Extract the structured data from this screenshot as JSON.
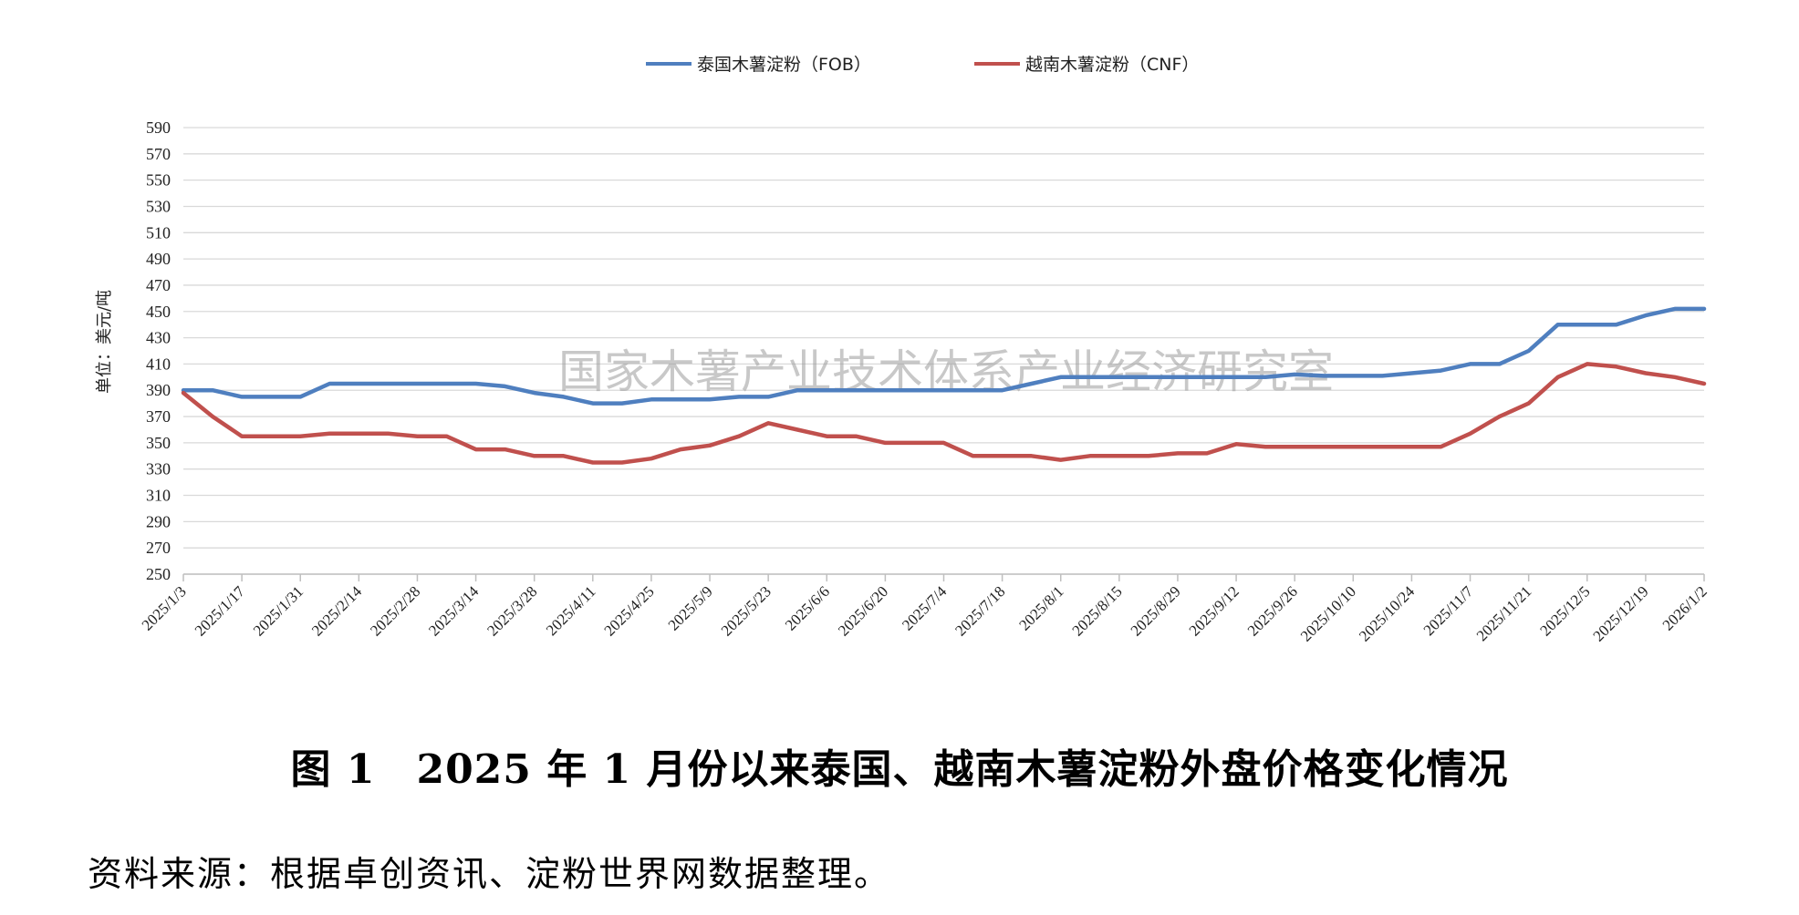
{
  "chart_data": {
    "type": "line",
    "title": "",
    "xlabel": "",
    "ylabel": "单位：美元/吨",
    "ylim": [
      250,
      590
    ],
    "yticks": [
      250,
      270,
      290,
      310,
      330,
      350,
      370,
      390,
      410,
      430,
      450,
      470,
      490,
      510,
      530,
      550,
      570,
      590
    ],
    "grid": true,
    "legend_position": "top-center",
    "x_tick_labels": [
      "2025/1/3",
      "2025/1/17",
      "2025/1/31",
      "2025/2/14",
      "2025/2/28",
      "2025/3/14",
      "2025/3/28",
      "2025/4/11",
      "2025/4/25",
      "2025/5/9",
      "2025/5/23",
      "2025/6/6",
      "2025/6/20",
      "2025/7/4",
      "2025/7/18",
      "2025/8/1",
      "2025/8/15",
      "2025/8/29",
      "2025/9/12",
      "2025/9/26",
      "2025/10/10",
      "2025/10/24",
      "2025/11/7",
      "2025/11/21",
      "2025/12/5",
      "2025/12/19",
      "2026/1/2"
    ],
    "x": [
      "2025/1/3",
      "2025/1/10",
      "2025/1/17",
      "2025/1/24",
      "2025/1/31",
      "2025/2/7",
      "2025/2/14",
      "2025/2/21",
      "2025/2/28",
      "2025/3/7",
      "2025/3/14",
      "2025/3/21",
      "2025/3/28",
      "2025/4/4",
      "2025/4/11",
      "2025/4/18",
      "2025/4/25",
      "2025/5/2",
      "2025/5/9",
      "2025/5/16",
      "2025/5/23",
      "2025/5/30",
      "2025/6/6",
      "2025/6/13",
      "2025/6/20",
      "2025/6/27",
      "2025/7/4",
      "2025/7/11",
      "2025/7/18",
      "2025/7/25",
      "2025/8/1",
      "2025/8/8",
      "2025/8/15",
      "2025/8/22",
      "2025/8/29",
      "2025/9/5",
      "2025/9/12",
      "2025/9/19",
      "2025/9/26",
      "2025/10/3",
      "2025/10/10",
      "2025/10/17",
      "2025/10/24",
      "2025/10/31",
      "2025/11/7",
      "2025/11/14",
      "2025/11/21",
      "2025/11/28",
      "2025/12/5",
      "2025/12/12",
      "2025/12/19",
      "2025/12/26",
      "2026/1/2"
    ],
    "series": [
      {
        "name": "泰国木薯淀粉（FOB）",
        "color": "#4f7fbf",
        "values": [
          390,
          390,
          385,
          385,
          385,
          395,
          395,
          395,
          395,
          395,
          395,
          393,
          388,
          385,
          380,
          380,
          383,
          383,
          383,
          385,
          385,
          390,
          390,
          390,
          390,
          390,
          390,
          390,
          390,
          395,
          400,
          400,
          400,
          400,
          400,
          400,
          400,
          400,
          402,
          401,
          401,
          401,
          403,
          405,
          410,
          410,
          420,
          440,
          440,
          440,
          447,
          452,
          452
        ]
      },
      {
        "name": "越南木薯淀粉（CNF）",
        "color": "#c0504d",
        "values": [
          388,
          370,
          355,
          355,
          355,
          357,
          357,
          357,
          355,
          355,
          345,
          345,
          340,
          340,
          335,
          335,
          338,
          345,
          348,
          355,
          365,
          360,
          355,
          355,
          350,
          350,
          350,
          340,
          340,
          340,
          337,
          340,
          340,
          340,
          342,
          342,
          349,
          347,
          347,
          347,
          347,
          347,
          347,
          347,
          357,
          370,
          380,
          400,
          410,
          408,
          403,
          400,
          395
        ]
      }
    ]
  },
  "watermark": "国家木薯产业技术体系产业经济研究室",
  "caption": "图 1　2025 年 1 月份以来泰国、越南木薯淀粉外盘价格变化情况",
  "source": "资料来源：根据卓创资讯、淀粉世界网数据整理。"
}
